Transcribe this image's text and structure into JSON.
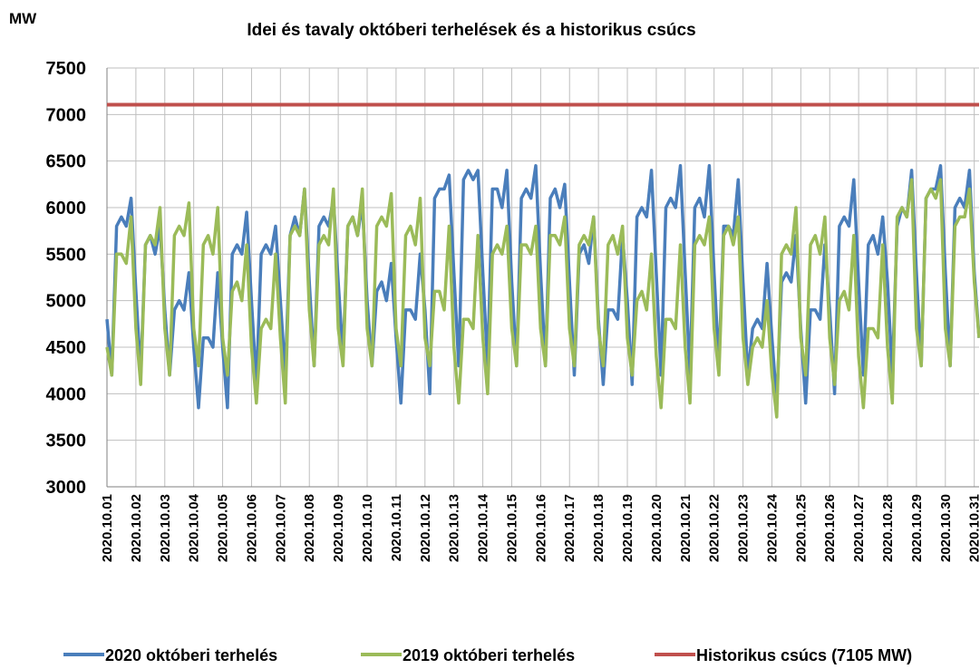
{
  "chart_data": {
    "type": "line",
    "title": "Idei és tavaly októberi terhelések és a historikus csúcs",
    "y_label": "MW",
    "categories": [
      "2020.10.01",
      null,
      null,
      null,
      null,
      null,
      "2020.10.02",
      null,
      null,
      null,
      null,
      null,
      "2020.10.03",
      null,
      null,
      null,
      null,
      null,
      "2020.10.04",
      null,
      null,
      null,
      null,
      null,
      "2020.10.05",
      null,
      null,
      null,
      null,
      null,
      "2020.10.06",
      null,
      null,
      null,
      null,
      null,
      "2020.10.07",
      null,
      null,
      null,
      null,
      null,
      "2020.10.08",
      null,
      null,
      null,
      null,
      null,
      "2020.10.09",
      null,
      null,
      null,
      null,
      null,
      "2020.10.10",
      null,
      null,
      null,
      null,
      null,
      "2020.10.11",
      null,
      null,
      null,
      null,
      null,
      "2020.10.12",
      null,
      null,
      null,
      null,
      null,
      "2020.10.13",
      null,
      null,
      null,
      null,
      null,
      "2020.10.14",
      null,
      null,
      null,
      null,
      null,
      "2020.10.15",
      null,
      null,
      null,
      null,
      null,
      "2020.10.16",
      null,
      null,
      null,
      null,
      null,
      "2020.10.17",
      null,
      null,
      null,
      null,
      null,
      "2020.10.18",
      null,
      null,
      null,
      null,
      null,
      "2020.10.19",
      null,
      null,
      null,
      null,
      null,
      "2020.10.20",
      null,
      null,
      null,
      null,
      null,
      "2020.10.21",
      null,
      null,
      null,
      null,
      null,
      "2020.10.22",
      null,
      null,
      null,
      null,
      null,
      "2020.10.23",
      null,
      null,
      null,
      null,
      null,
      "2020.10.24",
      null,
      null,
      null,
      null,
      null,
      "2020.10.25",
      null,
      null,
      null,
      null,
      null,
      "2020.10.26",
      null,
      null,
      null,
      null,
      null,
      "2020.10.27",
      null,
      null,
      null,
      null,
      null,
      "2020.10.28",
      null,
      null,
      null,
      null,
      null,
      "2020.10.29",
      null,
      null,
      null,
      null,
      null,
      "2020.10.30",
      null,
      null,
      null,
      null,
      null,
      "2020.10.31",
      null
    ],
    "series": [
      {
        "name": "2020 októberi terhelés",
        "color": "#4a7ebb",
        "values": [
          4800,
          4200,
          5800,
          5900,
          5800,
          6100,
          5100,
          4200,
          5600,
          5700,
          5500,
          5800,
          4900,
          4200,
          4900,
          5000,
          4900,
          5300,
          4500,
          3850,
          4600,
          4600,
          4500,
          5300,
          4500,
          3850,
          5500,
          5600,
          5500,
          5950,
          5000,
          4100,
          5500,
          5600,
          5500,
          5800,
          5000,
          4200,
          5700,
          5900,
          5700,
          6200,
          5200,
          4300,
          5800,
          5900,
          5800,
          6100,
          5200,
          4400,
          5800,
          5900,
          5700,
          6050,
          5000,
          4300,
          5100,
          5200,
          5000,
          5400,
          4600,
          3900,
          4900,
          4900,
          4800,
          5500,
          4900,
          4000,
          6100,
          6200,
          6200,
          6350,
          5300,
          4300,
          6300,
          6400,
          6300,
          6400,
          5300,
          4300,
          6200,
          6200,
          6000,
          6400,
          5200,
          4300,
          6100,
          6200,
          6100,
          6450,
          5300,
          4300,
          6100,
          6200,
          6000,
          6250,
          5200,
          4200,
          5500,
          5600,
          5400,
          5900,
          4800,
          4100,
          4900,
          4900,
          4800,
          5700,
          5000,
          4100,
          5900,
          6000,
          5900,
          6400,
          5300,
          4200,
          6000,
          6100,
          6000,
          6450,
          5300,
          4200,
          6000,
          6100,
          5900,
          6450,
          5300,
          4300,
          5800,
          5800,
          5700,
          6300,
          5200,
          4200,
          4700,
          4800,
          4700,
          5400,
          4600,
          3900,
          5200,
          5300,
          5200,
          5700,
          4700,
          3900,
          4900,
          4900,
          4800,
          5600,
          4900,
          4000,
          5800,
          5900,
          5800,
          6300,
          5200,
          4200,
          5600,
          5700,
          5500,
          5900,
          5200,
          4200,
          5800,
          6000,
          5900,
          6400,
          5300,
          4300,
          6100,
          6200,
          6200,
          6450,
          5300,
          4300,
          6000,
          6100,
          6000,
          6400,
          5300,
          4600
        ]
      },
      {
        "name": "2019 októberi terhelés",
        "color": "#9bbb59",
        "values": [
          4500,
          4200,
          5500,
          5500,
          5400,
          5900,
          4700,
          4100,
          5600,
          5700,
          5600,
          6000,
          4700,
          4200,
          5700,
          5800,
          5700,
          6050,
          4700,
          4300,
          5600,
          5700,
          5500,
          6000,
          4600,
          4200,
          5100,
          5200,
          5000,
          5600,
          4500,
          3900,
          4700,
          4800,
          4700,
          5500,
          4600,
          3900,
          5700,
          5800,
          5700,
          6200,
          4900,
          4300,
          5600,
          5700,
          5600,
          6200,
          4700,
          4300,
          5800,
          5900,
          5700,
          6200,
          4700,
          4300,
          5800,
          5900,
          5800,
          6150,
          4700,
          4300,
          5700,
          5800,
          5600,
          6100,
          4600,
          4300,
          5100,
          5100,
          4900,
          5800,
          4500,
          3900,
          4800,
          4800,
          4700,
          5700,
          4600,
          4000,
          5500,
          5600,
          5500,
          5800,
          4700,
          4300,
          5600,
          5600,
          5500,
          5800,
          4700,
          4300,
          5700,
          5700,
          5600,
          5900,
          4700,
          4300,
          5600,
          5700,
          5600,
          5900,
          4700,
          4300,
          5600,
          5700,
          5500,
          5800,
          4600,
          4200,
          5000,
          5100,
          4900,
          5500,
          4400,
          3850,
          4800,
          4800,
          4700,
          5600,
          4500,
          3900,
          5600,
          5700,
          5600,
          5900,
          4700,
          4200,
          5700,
          5800,
          5600,
          5900,
          4600,
          4100,
          4500,
          4600,
          4500,
          5000,
          4200,
          3750,
          5500,
          5600,
          5500,
          6000,
          4600,
          4200,
          5600,
          5700,
          5500,
          5900,
          4600,
          4100,
          5000,
          5100,
          4900,
          5700,
          4400,
          3850,
          4700,
          4700,
          4600,
          5600,
          4500,
          3900,
          5900,
          6000,
          5900,
          6300,
          4700,
          4300,
          6100,
          6200,
          6100,
          6300,
          4700,
          4300,
          5800,
          5900,
          5900,
          6200,
          5200,
          4600
        ]
      }
    ],
    "reference_line": {
      "name": "Historikus csúcs (7105 MW)",
      "value": 7105,
      "color": "#c0504d"
    },
    "ylim": [
      3000,
      7500
    ],
    "yticks": [
      3000,
      3500,
      4000,
      4500,
      5000,
      5500,
      6000,
      6500,
      7000,
      7500
    ],
    "grid": true,
    "legend": "bottom"
  }
}
